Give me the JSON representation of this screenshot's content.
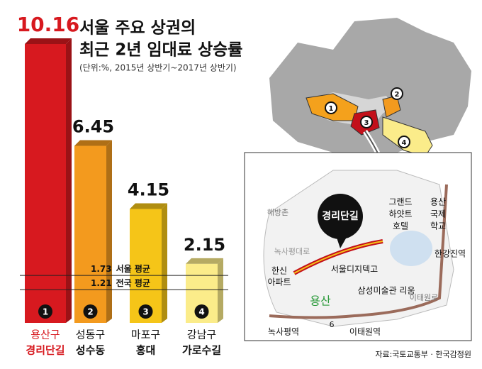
{
  "chart_data": {
    "type": "bar",
    "title": [
      "서울 주요 상권의",
      "최근 2년 임대료 상승률"
    ],
    "subtitle": "(단위:%, 2015년 상반기~2017년 상반기)",
    "categories": [
      [
        "용산구",
        "경리단길"
      ],
      [
        "성동구",
        "성수동"
      ],
      [
        "마포구",
        "홍대"
      ],
      [
        "강남구",
        "가로수길"
      ]
    ],
    "values": [
      10.16,
      6.45,
      4.15,
      2.15
    ],
    "colors": [
      "#d7191f",
      "#f39a1e",
      "#f5c518",
      "#fbec8a"
    ],
    "ranks": [
      "1",
      "2",
      "3",
      "4"
    ],
    "reference_lines": [
      {
        "value": 1.73,
        "label": "서울 평균"
      },
      {
        "value": 1.21,
        "label": "전국 평균"
      }
    ],
    "map_labels": [
      "경리단길",
      "그랜드",
      "하얏트",
      "호텔",
      "용산",
      "국제",
      "학교",
      "해방촌",
      "녹사평대로",
      "한신",
      "아파트",
      "서울디지텍고",
      "용산",
      "삼성미술관 리움",
      "한강진역",
      "이태원로",
      "6",
      "녹사평역",
      "이태원역"
    ],
    "source": "자료:국토교통부 · 한국감정원"
  }
}
